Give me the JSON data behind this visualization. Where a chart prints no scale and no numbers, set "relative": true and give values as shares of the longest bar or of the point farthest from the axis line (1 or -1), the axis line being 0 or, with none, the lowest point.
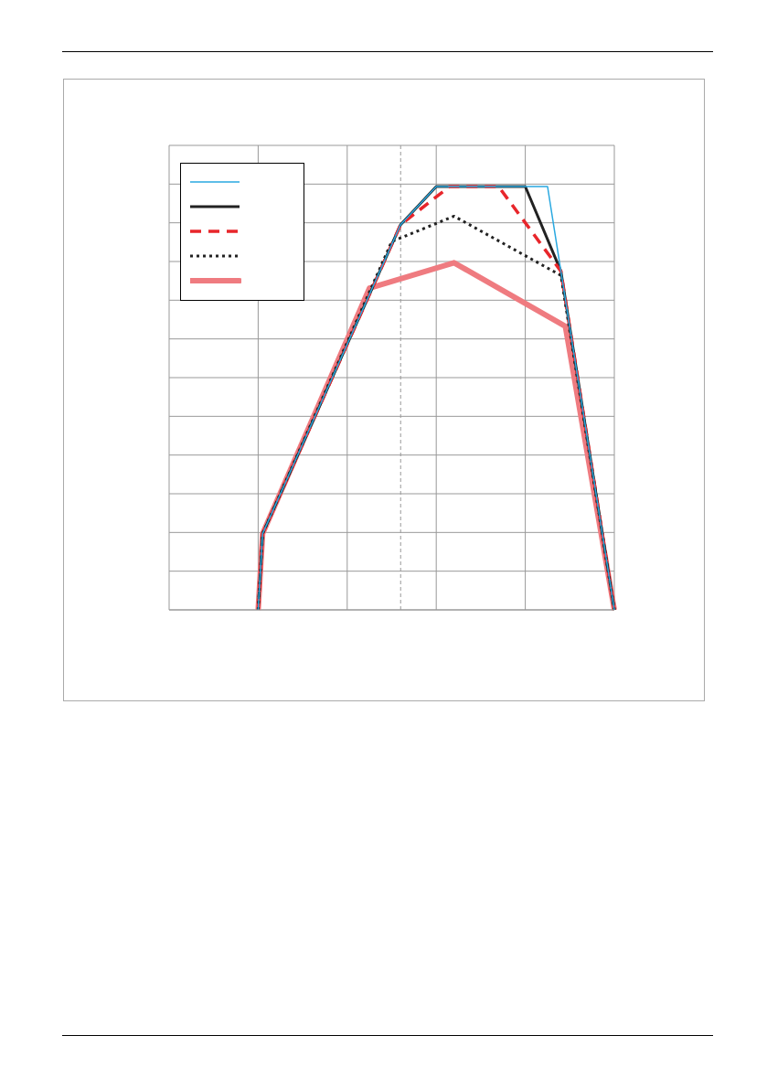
{
  "chart_data": {
    "type": "line",
    "relative": true,
    "grid": true,
    "categories": [
      null,
      null,
      null,
      null,
      null,
      null,
      null,
      null,
      null,
      null,
      null,
      null,
      null,
      null,
      null,
      null,
      null,
      null,
      null,
      null,
      null,
      null,
      null,
      null,
      null,
      null,
      null,
      null,
      null,
      null,
      null,
      null,
      null,
      null,
      null,
      null,
      null,
      null,
      null,
      null,
      null,
      null,
      null,
      null,
      null,
      null,
      null,
      null,
      null,
      null,
      null,
      null,
      null,
      null,
      null,
      null,
      null,
      null,
      null,
      null,
      null,
      null,
      null,
      null,
      null,
      null,
      null,
      null,
      null,
      null,
      null,
      null,
      null,
      null,
      null,
      null,
      null,
      null,
      null,
      null,
      null,
      null,
      null,
      null,
      null,
      null,
      null,
      null,
      null,
      null,
      null,
      null,
      null,
      null,
      null,
      null,
      null,
      null,
      null,
      null,
      null
    ],
    "series": [
      {
        "color": "#29a8e0",
        "line_style": "solid",
        "values": [
          null,
          null,
          null,
          null,
          null,
          null,
          null,
          null,
          null,
          null,
          null,
          null,
          null,
          null,
          null,
          null,
          null,
          null,
          null,
          null,
          0,
          0.18,
          null,
          null,
          null,
          null,
          null,
          null,
          null,
          null,
          null,
          null,
          null,
          null,
          null,
          null,
          null,
          null,
          null,
          null,
          null,
          null,
          null,
          null,
          null,
          null,
          null,
          null,
          null,
          null,
          null,
          null,
          0.91,
          null,
          null,
          null,
          null,
          null,
          null,
          null,
          1,
          null,
          null,
          null,
          null,
          null,
          null,
          null,
          null,
          null,
          null,
          null,
          null,
          null,
          null,
          null,
          null,
          null,
          null,
          null,
          null,
          null,
          null,
          null,
          null,
          1,
          null,
          null,
          0.8,
          null,
          null,
          null,
          null,
          null,
          null,
          null,
          null,
          null,
          null,
          null,
          0
        ]
      },
      {
        "color": "#222222",
        "line_style": "solid",
        "values": [
          null,
          null,
          null,
          null,
          null,
          null,
          null,
          null,
          null,
          null,
          null,
          null,
          null,
          null,
          null,
          null,
          null,
          null,
          null,
          null,
          0,
          0.18,
          null,
          null,
          null,
          null,
          null,
          null,
          null,
          null,
          null,
          null,
          null,
          null,
          null,
          null,
          null,
          null,
          null,
          null,
          null,
          null,
          null,
          null,
          null,
          null,
          null,
          null,
          null,
          null,
          null,
          null,
          0.91,
          null,
          null,
          null,
          null,
          null,
          null,
          null,
          1,
          null,
          null,
          null,
          null,
          null,
          null,
          null,
          null,
          null,
          null,
          null,
          null,
          null,
          null,
          null,
          null,
          null,
          null,
          null,
          1,
          null,
          null,
          null,
          null,
          null,
          null,
          null,
          0.8,
          null,
          null,
          null,
          null,
          null,
          null,
          null,
          null,
          null,
          null,
          null,
          0
        ]
      },
      {
        "color": "#e8262b",
        "line_style": "dashed",
        "values": [
          null,
          null,
          null,
          null,
          null,
          null,
          null,
          null,
          null,
          null,
          null,
          null,
          null,
          null,
          null,
          null,
          null,
          null,
          null,
          null,
          0,
          0.18,
          null,
          null,
          null,
          null,
          null,
          null,
          null,
          null,
          null,
          null,
          null,
          null,
          null,
          null,
          null,
          null,
          null,
          null,
          null,
          null,
          null,
          null,
          null,
          null,
          null,
          null,
          null,
          null,
          null,
          null,
          0.91,
          null,
          null,
          null,
          null,
          null,
          null,
          null,
          null,
          null,
          null,
          1,
          null,
          null,
          null,
          null,
          null,
          null,
          null,
          null,
          null,
          null,
          1,
          null,
          null,
          null,
          null,
          null,
          null,
          null,
          null,
          null,
          null,
          null,
          null,
          null,
          0.8,
          null,
          null,
          null,
          null,
          null,
          null,
          null,
          null,
          null,
          null,
          null,
          0
        ]
      },
      {
        "color": "#222222",
        "line_style": "dotted",
        "values": [
          null,
          null,
          null,
          null,
          null,
          null,
          null,
          null,
          null,
          null,
          null,
          null,
          null,
          null,
          null,
          null,
          null,
          null,
          null,
          null,
          0,
          0.18,
          null,
          null,
          null,
          null,
          null,
          null,
          null,
          null,
          null,
          null,
          null,
          null,
          null,
          null,
          null,
          null,
          null,
          null,
          null,
          null,
          null,
          null,
          null,
          null,
          null,
          null,
          null,
          null,
          0.87,
          null,
          null,
          null,
          null,
          null,
          null,
          null,
          null,
          null,
          null,
          null,
          null,
          null,
          0.93,
          null,
          null,
          null,
          null,
          null,
          null,
          null,
          null,
          null,
          null,
          null,
          null,
          null,
          null,
          null,
          null,
          null,
          null,
          null,
          null,
          null,
          null,
          null,
          0.79,
          null,
          null,
          null,
          null,
          null,
          null,
          null,
          null,
          null,
          null,
          null,
          0
        ]
      },
      {
        "color": "#ef7b80",
        "line_style": "solid",
        "values": [
          null,
          null,
          null,
          null,
          null,
          null,
          null,
          null,
          null,
          null,
          null,
          null,
          null,
          null,
          null,
          null,
          null,
          null,
          null,
          null,
          0,
          0.18,
          null,
          null,
          null,
          null,
          null,
          null,
          null,
          null,
          null,
          null,
          null,
          null,
          null,
          null,
          null,
          null,
          null,
          null,
          null,
          null,
          null,
          null,
          null,
          0.76,
          null,
          null,
          null,
          null,
          null,
          null,
          null,
          null,
          null,
          null,
          null,
          null,
          null,
          null,
          null,
          null,
          null,
          null,
          0.82,
          null,
          null,
          null,
          null,
          null,
          null,
          null,
          null,
          null,
          null,
          null,
          null,
          null,
          null,
          null,
          null,
          null,
          null,
          null,
          null,
          null,
          null,
          null,
          null,
          0.67,
          null,
          null,
          null,
          null,
          null,
          null,
          null,
          null,
          null,
          null,
          0
        ]
      }
    ]
  }
}
